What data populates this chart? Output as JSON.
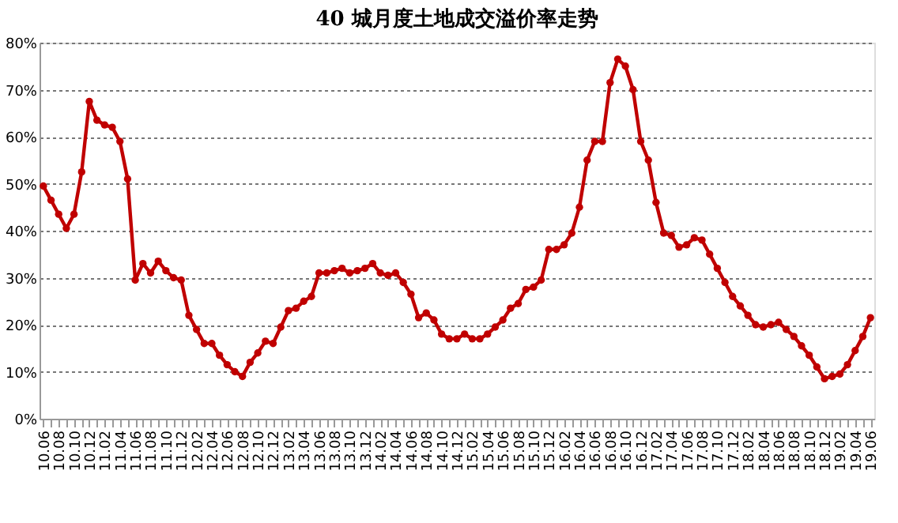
{
  "chart_data": {
    "type": "line",
    "title": "40 城月度土地成交溢价率走势",
    "categories": [
      "10.06",
      null,
      "10.08",
      null,
      "10.10",
      null,
      "10.12",
      null,
      "11.02",
      null,
      "11.04",
      null,
      "11.06",
      null,
      "11.08",
      null,
      "11.10",
      null,
      "11.12",
      null,
      "12.02",
      null,
      "12.04",
      null,
      "12.06",
      null,
      "12.08",
      null,
      "12.10",
      null,
      "12.12",
      null,
      "13.02",
      null,
      "13.04",
      null,
      "13.06",
      null,
      "13.08",
      null,
      "13.10",
      null,
      "13.12",
      null,
      "14.02",
      null,
      "14.04",
      null,
      "14.06",
      null,
      "14.08",
      null,
      "14.10",
      null,
      "14.12",
      null,
      "15.02",
      null,
      "15.04",
      null,
      "15.06",
      null,
      "15.08",
      null,
      "15.10",
      null,
      "15.12",
      null,
      "16.02",
      null,
      "16.04",
      null,
      "16.06",
      null,
      "16.08",
      null,
      "16.10",
      null,
      "16.12",
      null,
      "17.02",
      null,
      "17.04",
      null,
      "17.06",
      null,
      "17.08",
      null,
      "17.10",
      null,
      "17.12",
      null,
      "18.02",
      null,
      "18.04",
      null,
      "18.06",
      null,
      "18.08",
      null,
      "18.10",
      null,
      "18.12",
      null,
      "19.02",
      null,
      "19.04",
      null,
      "19.06"
    ],
    "series": [
      {
        "color": "#c00000",
        "values": [
          49.5,
          46.5,
          43.5,
          40.5,
          43.5,
          52.5,
          67.5,
          63.5,
          62.5,
          62,
          59,
          51,
          29.5,
          33,
          31,
          33.5,
          31.5,
          30,
          29.5,
          22,
          19,
          16,
          16,
          13.5,
          11.5,
          10,
          9,
          12,
          14,
          16.5,
          16,
          19.5,
          23,
          23.5,
          25,
          26,
          31,
          31,
          31.5,
          32,
          31,
          31.5,
          32,
          33,
          31,
          30.5,
          31,
          29,
          26.5,
          21.5,
          22.5,
          21,
          18,
          17,
          17,
          18,
          17,
          17,
          18,
          19.5,
          21,
          23.5,
          24.5,
          27.5,
          28,
          29.5,
          36,
          36,
          37,
          39.5,
          45,
          55,
          59,
          59,
          71.5,
          76.5,
          75,
          70,
          59,
          55,
          46,
          39.5,
          39,
          36.5,
          37,
          38.5,
          38,
          35,
          32,
          29,
          26,
          24,
          22,
          20,
          19.5,
          20,
          20.5,
          19,
          17.5,
          15.5,
          13.5,
          11,
          8.5,
          9,
          9.5,
          11.5,
          14.5,
          17.5,
          21.5
        ]
      }
    ],
    "ylim": [
      0,
      80
    ],
    "yticks": [
      {
        "value": 0,
        "label": "0%"
      },
      {
        "value": 10,
        "label": "10%"
      },
      {
        "value": 20,
        "label": "20%"
      },
      {
        "value": 30,
        "label": "30%"
      },
      {
        "value": 40,
        "label": "40%"
      },
      {
        "value": 50,
        "label": "50%"
      },
      {
        "value": 60,
        "label": "60%"
      },
      {
        "value": 70,
        "label": "70%"
      },
      {
        "value": 80,
        "label": "80%"
      }
    ],
    "grid": "y",
    "marker": "circle",
    "line_style": "solid"
  }
}
